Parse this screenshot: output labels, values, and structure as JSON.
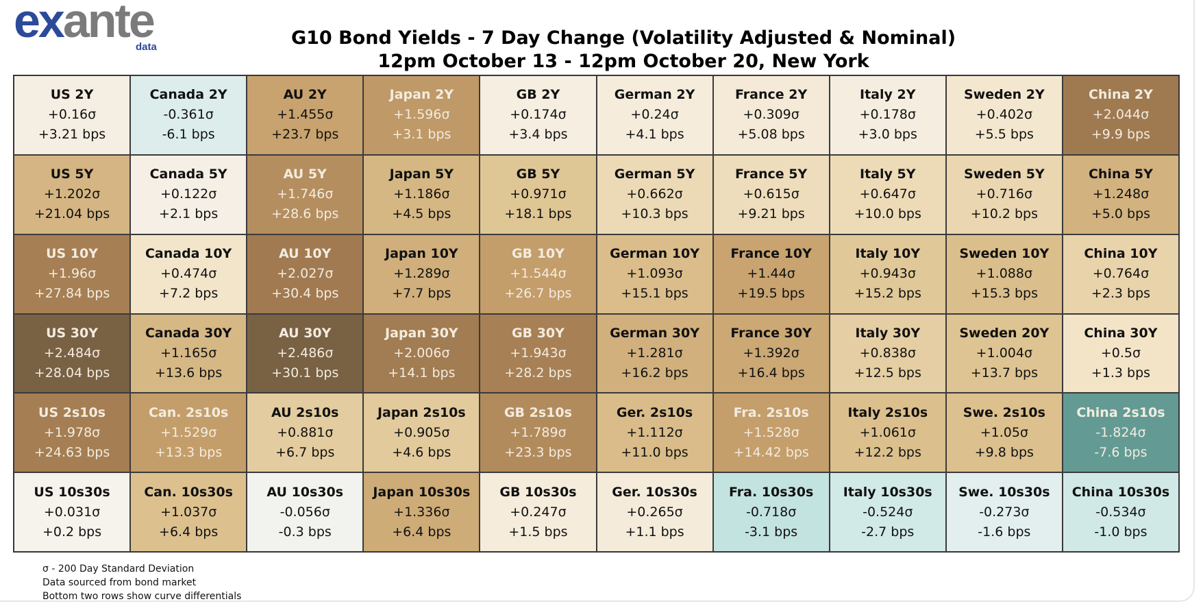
{
  "logo": {
    "text": "exante",
    "sub": "data"
  },
  "chart_data": {
    "type": "heatmap",
    "title": "G10 Bond Yields - 7 Day Change (Volatility Adjusted & Nominal)",
    "subtitle": "12pm October 13 - 12pm October 20, New York",
    "colors": {
      "negative_strong": "#5f968f",
      "negative_light": "#e2f0ee",
      "neutral": "#f6f2ea",
      "positive_mid": "#d9bf8c",
      "positive_strong": "#7a6145"
    },
    "rows": [
      [
        [
          "US 2Y",
          "+0.16σ",
          "+3.21 bps"
        ],
        [
          "Canada 2Y",
          "-0.361σ",
          "-6.1 bps"
        ],
        [
          "AU 2Y",
          "+1.455σ",
          "+23.7 bps"
        ],
        [
          "Japan 2Y",
          "+1.596σ",
          "+3.1 bps"
        ],
        [
          "GB 2Y",
          "+0.174σ",
          "+3.4 bps"
        ],
        [
          "German 2Y",
          "+0.24σ",
          "+4.1 bps"
        ],
        [
          "France 2Y",
          "+0.309σ",
          "+5.08 bps"
        ],
        [
          "Italy 2Y",
          "+0.178σ",
          "+3.0 bps"
        ],
        [
          "Sweden 2Y",
          "+0.402σ",
          "+5.5 bps"
        ],
        [
          "China 2Y",
          "+2.044σ",
          "+9.9 bps"
        ]
      ],
      [
        [
          "US 5Y",
          "+1.202σ",
          "+21.04 bps"
        ],
        [
          "Canada 5Y",
          "+0.122σ",
          "+2.1 bps"
        ],
        [
          "AU 5Y",
          "+1.746σ",
          "+28.6 bps"
        ],
        [
          "Japan 5Y",
          "+1.186σ",
          "+4.5 bps"
        ],
        [
          "GB 5Y",
          "+0.971σ",
          "+18.1 bps"
        ],
        [
          "German 5Y",
          "+0.662σ",
          "+10.3 bps"
        ],
        [
          "France 5Y",
          "+0.615σ",
          "+9.21 bps"
        ],
        [
          "Italy 5Y",
          "+0.647σ",
          "+10.0 bps"
        ],
        [
          "Sweden 5Y",
          "+0.716σ",
          "+10.2 bps"
        ],
        [
          "China 5Y",
          "+1.248σ",
          "+5.0 bps"
        ]
      ],
      [
        [
          "US 10Y",
          "+1.96σ",
          "+27.84 bps"
        ],
        [
          "Canada 10Y",
          "+0.474σ",
          "+7.2 bps"
        ],
        [
          "AU 10Y",
          "+2.027σ",
          "+30.4 bps"
        ],
        [
          "Japan 10Y",
          "+1.289σ",
          "+7.7 bps"
        ],
        [
          "GB 10Y",
          "+1.544σ",
          "+26.7 bps"
        ],
        [
          "German 10Y",
          "+1.093σ",
          "+15.1 bps"
        ],
        [
          "France 10Y",
          "+1.44σ",
          "+19.5 bps"
        ],
        [
          "Italy 10Y",
          "+0.943σ",
          "+15.2 bps"
        ],
        [
          "Sweden 10Y",
          "+1.088σ",
          "+15.3 bps"
        ],
        [
          "China 10Y",
          "+0.764σ",
          "+2.3 bps"
        ]
      ],
      [
        [
          "US 30Y",
          "+2.484σ",
          "+28.04 bps"
        ],
        [
          "Canada 30Y",
          "+1.165σ",
          "+13.6 bps"
        ],
        [
          "AU 30Y",
          "+2.486σ",
          "+30.1 bps"
        ],
        [
          "Japan 30Y",
          "+2.006σ",
          "+14.1 bps"
        ],
        [
          "GB 30Y",
          "+1.943σ",
          "+28.2 bps"
        ],
        [
          "German 30Y",
          "+1.281σ",
          "+16.2 bps"
        ],
        [
          "France 30Y",
          "+1.392σ",
          "+16.4 bps"
        ],
        [
          "Italy 30Y",
          "+0.838σ",
          "+12.5 bps"
        ],
        [
          "Sweden 20Y",
          "+1.004σ",
          "+13.7 bps"
        ],
        [
          "China 30Y",
          "+0.5σ",
          "+1.3 bps"
        ]
      ],
      [
        [
          "US 2s10s",
          "+1.978σ",
          "+24.63 bps"
        ],
        [
          "Can. 2s10s",
          "+1.529σ",
          "+13.3 bps"
        ],
        [
          "AU 2s10s",
          "+0.881σ",
          "+6.7 bps"
        ],
        [
          "Japan 2s10s",
          "+0.905σ",
          "+4.6 bps"
        ],
        [
          "GB 2s10s",
          "+1.789σ",
          "+23.3 bps"
        ],
        [
          "Ger. 2s10s",
          "+1.112σ",
          "+11.0 bps"
        ],
        [
          "Fra. 2s10s",
          "+1.528σ",
          "+14.42 bps"
        ],
        [
          "Italy 2s10s",
          "+1.061σ",
          "+12.2 bps"
        ],
        [
          "Swe. 2s10s",
          "+1.05σ",
          "+9.8 bps"
        ],
        [
          "China 2s10s",
          "-1.824σ",
          "-7.6 bps"
        ]
      ],
      [
        [
          "US 10s30s",
          "+0.031σ",
          "+0.2 bps"
        ],
        [
          "Can. 10s30s",
          "+1.037σ",
          "+6.4 bps"
        ],
        [
          "AU 10s30s",
          "-0.056σ",
          "-0.3 bps"
        ],
        [
          "Japan 10s30s",
          "+1.336σ",
          "+6.4 bps"
        ],
        [
          "GB 10s30s",
          "+0.247σ",
          "+1.5 bps"
        ],
        [
          "Ger. 10s30s",
          "+0.265σ",
          "+1.1 bps"
        ],
        [
          "Fra. 10s30s",
          "-0.718σ",
          "-3.1 bps"
        ],
        [
          "Italy 10s30s",
          "-0.524σ",
          "-2.7 bps"
        ],
        [
          "Swe. 10s30s",
          "-0.273σ",
          "-1.6 bps"
        ],
        [
          "China 10s30s",
          "-0.534σ",
          "-1.0 bps"
        ]
      ]
    ],
    "notes": [
      "σ - 200 Day Standard Deviation",
      "Data sourced from bond market",
      "Bottom two rows show curve differentials"
    ]
  }
}
